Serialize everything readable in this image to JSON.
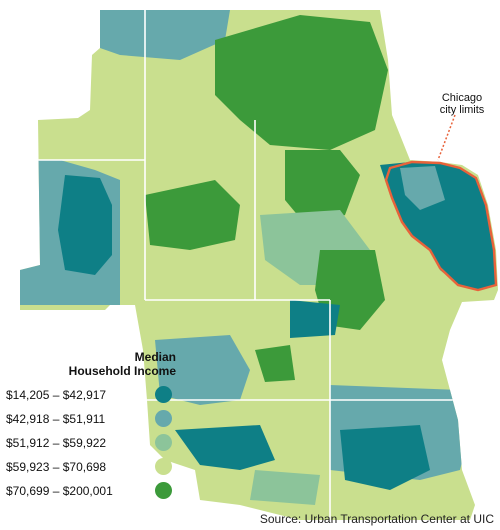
{
  "legend": {
    "title_line1": "Median",
    "title_line2": "Household Income",
    "items": [
      {
        "label": "$14,205 – $42,917",
        "color": "#0e7f86"
      },
      {
        "label": "$42,918 – $51,911",
        "color": "#66a9ac"
      },
      {
        "label": "$51,912 – $59,922",
        "color": "#8cc49a"
      },
      {
        "label": "$59,923 – $70,698",
        "color": "#c9df8e"
      },
      {
        "label": "$70,699 – $200,001",
        "color": "#3c9a3a"
      }
    ]
  },
  "annotation": {
    "line1": "Chicago",
    "line2": "city limits",
    "color": "#e8623a"
  },
  "source": "Source: Urban Transportation Center at UIC",
  "colors": {
    "lake": "#ffffff",
    "county_border": "#ffffff",
    "background": "#ffffff"
  }
}
